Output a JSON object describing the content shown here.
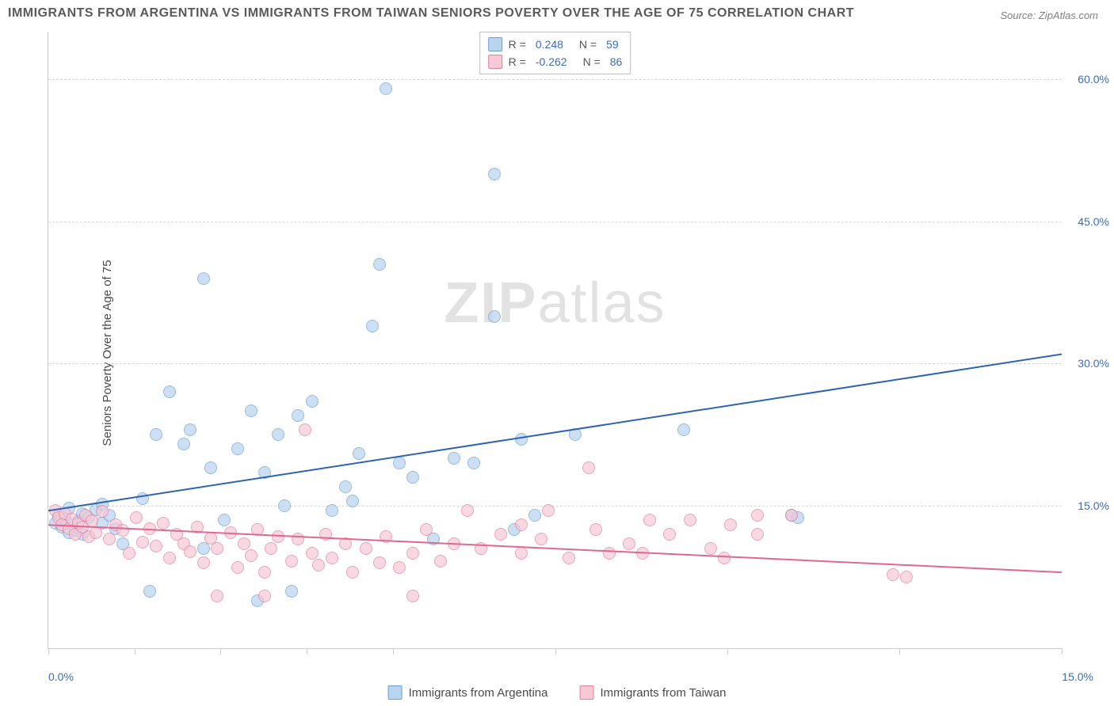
{
  "title": "IMMIGRANTS FROM ARGENTINA VS IMMIGRANTS FROM TAIWAN SENIORS POVERTY OVER THE AGE OF 75 CORRELATION CHART",
  "source": "Source: ZipAtlas.com",
  "y_axis_label": "Seniors Poverty Over the Age of 75",
  "watermark_bold": "ZIP",
  "watermark_light": "atlas",
  "chart": {
    "type": "scatter",
    "xlim": [
      0,
      15
    ],
    "ylim": [
      0,
      65
    ],
    "x_axis": {
      "min_label": "0.0%",
      "max_label": "15.0%",
      "ticks_pct": [
        0,
        8.5,
        17,
        25.5,
        34,
        50,
        67,
        84,
        100
      ]
    },
    "y_grid": [
      {
        "value": 15,
        "label": "15.0%"
      },
      {
        "value": 30,
        "label": "30.0%"
      },
      {
        "value": 45,
        "label": "45.0%"
      },
      {
        "value": 60,
        "label": "60.0%"
      }
    ],
    "grid_color": "#d8d8d8",
    "background_color": "#ffffff",
    "series": [
      {
        "name": "Immigrants from Argentina",
        "color_fill": "#b9d4ef",
        "color_stroke": "#6a9fd4",
        "marker_size": 16,
        "marker_opacity": 0.7,
        "trend": {
          "color": "#2f63b5",
          "width": 2,
          "y_at_xmin": 14.5,
          "y_at_xmax": 31.0
        },
        "correlation": {
          "R_label": "R =",
          "R": "0.248",
          "N_label": "N =",
          "N": "59"
        },
        "points": [
          [
            0.1,
            13.2
          ],
          [
            0.15,
            14.0
          ],
          [
            0.2,
            12.8
          ],
          [
            0.25,
            13.6
          ],
          [
            0.3,
            12.2
          ],
          [
            0.35,
            13.0
          ],
          [
            0.4,
            12.4
          ],
          [
            0.45,
            13.4
          ],
          [
            0.5,
            12.0
          ],
          [
            0.3,
            14.8
          ],
          [
            0.5,
            14.2
          ],
          [
            0.6,
            13.8
          ],
          [
            0.7,
            14.6
          ],
          [
            0.8,
            13.2
          ],
          [
            0.9,
            14.0
          ],
          [
            1.0,
            12.6
          ],
          [
            0.8,
            15.2
          ],
          [
            1.1,
            11.0
          ],
          [
            1.4,
            15.8
          ],
          [
            1.5,
            6.0
          ],
          [
            1.6,
            22.5
          ],
          [
            1.8,
            27.0
          ],
          [
            2.0,
            21.5
          ],
          [
            2.1,
            23.0
          ],
          [
            2.3,
            39.0
          ],
          [
            2.4,
            19.0
          ],
          [
            2.6,
            13.5
          ],
          [
            2.8,
            21.0
          ],
          [
            2.3,
            10.5
          ],
          [
            3.1,
            5.0
          ],
          [
            3.0,
            25.0
          ],
          [
            3.2,
            18.5
          ],
          [
            3.4,
            22.5
          ],
          [
            3.5,
            15.0
          ],
          [
            3.7,
            24.5
          ],
          [
            3.9,
            26.0
          ],
          [
            3.6,
            6.0
          ],
          [
            4.2,
            14.5
          ],
          [
            4.4,
            17.0
          ],
          [
            4.6,
            20.5
          ],
          [
            4.8,
            34.0
          ],
          [
            4.9,
            40.5
          ],
          [
            5.0,
            59.0
          ],
          [
            4.5,
            15.5
          ],
          [
            5.2,
            19.5
          ],
          [
            5.4,
            18.0
          ],
          [
            5.7,
            11.5
          ],
          [
            6.0,
            20.0
          ],
          [
            6.3,
            19.5
          ],
          [
            6.6,
            35.0
          ],
          [
            6.6,
            50.0
          ],
          [
            6.9,
            12.5
          ],
          [
            7.2,
            14.0
          ],
          [
            7.0,
            22.0
          ],
          [
            7.8,
            22.5
          ],
          [
            9.4,
            23.0
          ],
          [
            11.0,
            14.0
          ],
          [
            11.1,
            13.8
          ]
        ]
      },
      {
        "name": "Immigrants from Taiwan",
        "color_fill": "#f6c9d5",
        "color_stroke": "#e37da0",
        "marker_size": 16,
        "marker_opacity": 0.7,
        "trend": {
          "color": "#e0688f",
          "width": 2,
          "y_at_xmin": 13.0,
          "y_at_xmax": 8.0
        },
        "correlation": {
          "R_label": "R =",
          "R": "-0.262",
          "N_label": "N =",
          "N": "86"
        },
        "points": [
          [
            0.1,
            14.5
          ],
          [
            0.15,
            13.8
          ],
          [
            0.2,
            13.0
          ],
          [
            0.25,
            14.2
          ],
          [
            0.3,
            12.6
          ],
          [
            0.35,
            13.6
          ],
          [
            0.4,
            12.0
          ],
          [
            0.45,
            13.2
          ],
          [
            0.5,
            12.8
          ],
          [
            0.55,
            14.0
          ],
          [
            0.6,
            11.8
          ],
          [
            0.65,
            13.4
          ],
          [
            0.7,
            12.2
          ],
          [
            0.8,
            14.4
          ],
          [
            0.9,
            11.5
          ],
          [
            1.0,
            13.0
          ],
          [
            1.1,
            12.4
          ],
          [
            1.2,
            10.0
          ],
          [
            1.3,
            13.8
          ],
          [
            1.4,
            11.2
          ],
          [
            1.5,
            12.6
          ],
          [
            1.6,
            10.8
          ],
          [
            1.7,
            13.2
          ],
          [
            1.8,
            9.5
          ],
          [
            1.9,
            12.0
          ],
          [
            2.0,
            11.0
          ],
          [
            2.1,
            10.2
          ],
          [
            2.2,
            12.8
          ],
          [
            2.3,
            9.0
          ],
          [
            2.4,
            11.6
          ],
          [
            2.5,
            10.5
          ],
          [
            2.5,
            5.5
          ],
          [
            2.7,
            12.2
          ],
          [
            2.8,
            8.5
          ],
          [
            2.9,
            11.0
          ],
          [
            3.0,
            9.8
          ],
          [
            3.1,
            12.5
          ],
          [
            3.2,
            8.0
          ],
          [
            3.3,
            10.5
          ],
          [
            3.4,
            11.8
          ],
          [
            3.2,
            5.5
          ],
          [
            3.6,
            9.2
          ],
          [
            3.7,
            11.5
          ],
          [
            3.8,
            23.0
          ],
          [
            3.9,
            10.0
          ],
          [
            4.0,
            8.8
          ],
          [
            4.1,
            12.0
          ],
          [
            4.2,
            9.5
          ],
          [
            4.4,
            11.0
          ],
          [
            4.5,
            8.0
          ],
          [
            4.7,
            10.5
          ],
          [
            4.9,
            9.0
          ],
          [
            5.0,
            11.8
          ],
          [
            5.2,
            8.5
          ],
          [
            5.4,
            10.0
          ],
          [
            5.4,
            5.5
          ],
          [
            5.6,
            12.5
          ],
          [
            5.8,
            9.2
          ],
          [
            6.0,
            11.0
          ],
          [
            6.2,
            14.5
          ],
          [
            6.4,
            10.5
          ],
          [
            6.7,
            12.0
          ],
          [
            7.0,
            13.0
          ],
          [
            7.0,
            10.0
          ],
          [
            7.3,
            11.5
          ],
          [
            7.4,
            14.5
          ],
          [
            7.7,
            9.5
          ],
          [
            8.0,
            19.0
          ],
          [
            8.1,
            12.5
          ],
          [
            8.3,
            10.0
          ],
          [
            8.6,
            11.0
          ],
          [
            8.9,
            13.5
          ],
          [
            8.8,
            10.0
          ],
          [
            9.2,
            12.0
          ],
          [
            9.5,
            13.5
          ],
          [
            9.8,
            10.5
          ],
          [
            10.1,
            13.0
          ],
          [
            10.0,
            9.5
          ],
          [
            10.5,
            14.0
          ],
          [
            10.5,
            12.0
          ],
          [
            11.0,
            14.0
          ],
          [
            12.5,
            7.8
          ],
          [
            12.7,
            7.5
          ]
        ]
      }
    ]
  }
}
